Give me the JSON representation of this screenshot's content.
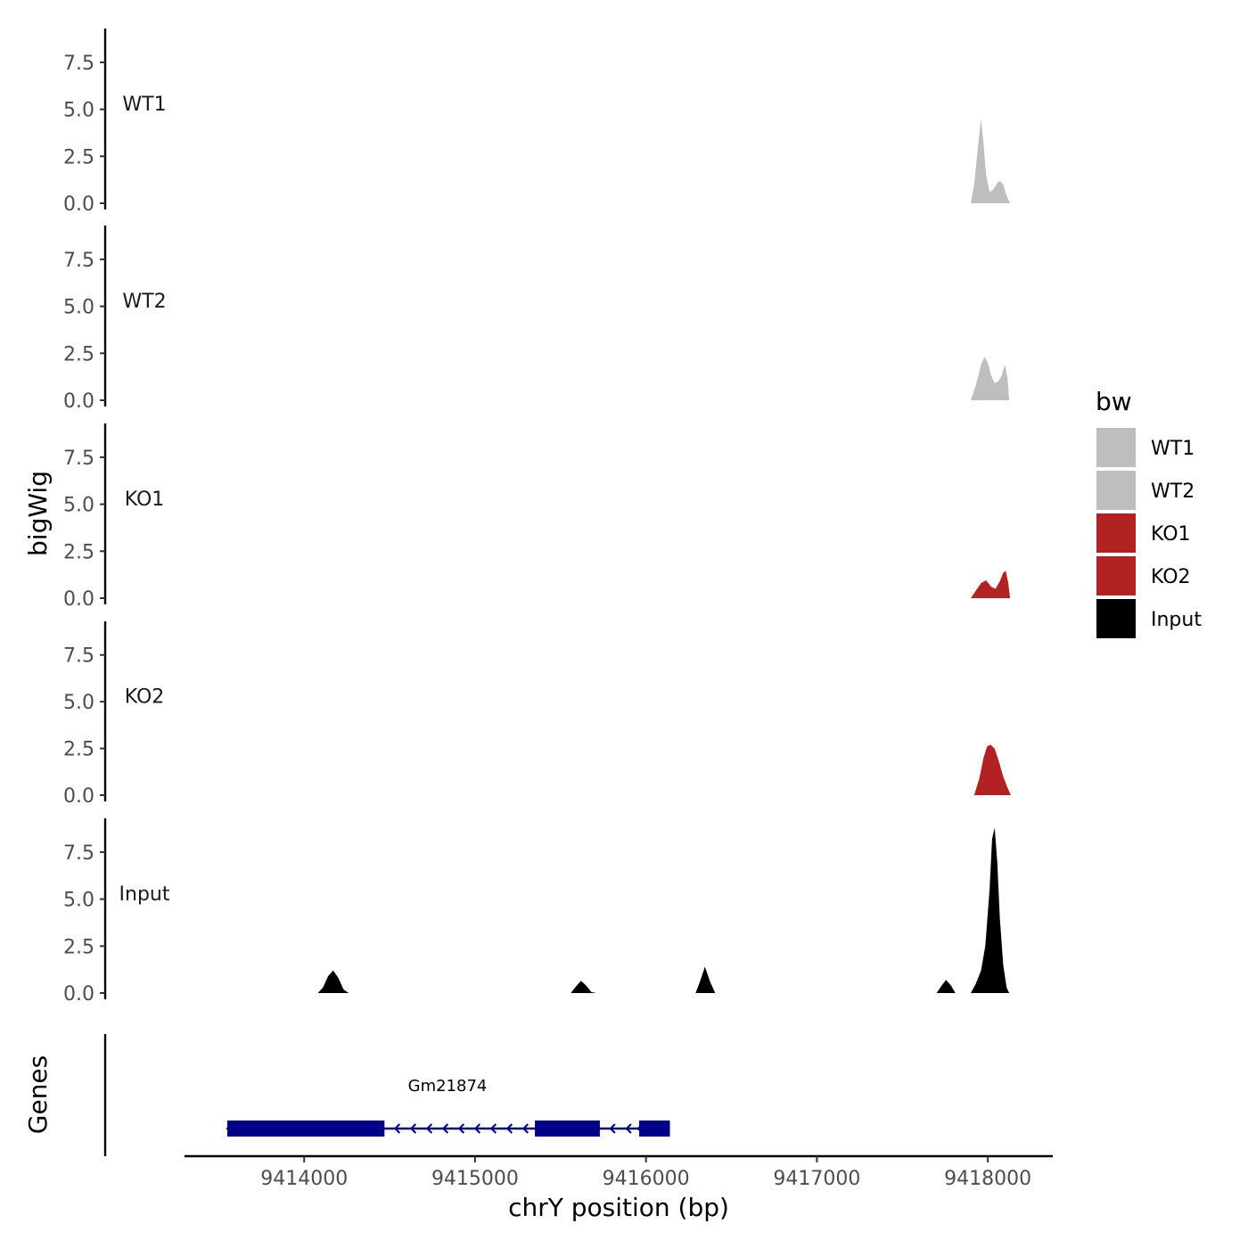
{
  "chart_data": {
    "type": "area",
    "ylabel": "bigWig",
    "xlabel": "chrY position (bp)",
    "xlim": [
      9413300,
      9418380
    ],
    "x_ticks": [
      9414000,
      9415000,
      9416000,
      9417000,
      9418000
    ],
    "x_tick_labels": [
      "9414000",
      "9415000",
      "9416000",
      "9417000",
      "9418000"
    ],
    "ylim": [
      0,
      9.3
    ],
    "y_ticks": [
      0,
      2.5,
      5,
      7.5
    ],
    "y_tick_labels": [
      "0.0",
      "2.5",
      "5.0",
      "7.5"
    ],
    "legend": {
      "title": "bw",
      "placement": "right",
      "entries": [
        {
          "label": "WT1",
          "color": "#bebebe"
        },
        {
          "label": "WT2",
          "color": "#bebebe"
        },
        {
          "label": "KO1",
          "color": "#b22222"
        },
        {
          "label": "KO2",
          "color": "#b22222"
        },
        {
          "label": "Input",
          "color": "#000000"
        }
      ]
    },
    "tracks": [
      {
        "name": "WT1",
        "color": "#bebebe",
        "x": [
          9417900,
          9417920,
          9417940,
          9417960,
          9417975,
          9417990,
          9418010,
          9418030,
          9418050,
          9418070,
          9418090,
          9418110,
          9418130
        ],
        "y": [
          0,
          1.0,
          2.8,
          4.5,
          3.2,
          1.5,
          0.6,
          0.7,
          1.0,
          1.2,
          1.0,
          0.4,
          0
        ]
      },
      {
        "name": "WT2",
        "color": "#bebebe",
        "x": [
          9417900,
          9417930,
          9417960,
          9417980,
          9418000,
          9418020,
          9418040,
          9418060,
          9418080,
          9418100,
          9418115,
          9418125
        ],
        "y": [
          0,
          0.8,
          1.9,
          2.3,
          2.0,
          1.3,
          0.9,
          1.0,
          1.3,
          1.9,
          1.2,
          0
        ]
      },
      {
        "name": "KO1",
        "color": "#b22222",
        "x": [
          9417900,
          9417930,
          9417960,
          9417990,
          9418020,
          9418045,
          9418070,
          9418090,
          9418105,
          9418120,
          9418130
        ],
        "y": [
          0,
          0.4,
          0.8,
          0.95,
          0.6,
          0.5,
          0.9,
          1.35,
          1.45,
          0.8,
          0
        ]
      },
      {
        "name": "KO2",
        "color": "#b22222",
        "x": [
          9417920,
          9417950,
          9417975,
          9417995,
          9418015,
          9418040,
          9418065,
          9418090,
          9418115,
          9418135
        ],
        "y": [
          0,
          0.9,
          2.0,
          2.6,
          2.7,
          2.5,
          1.8,
          1.0,
          0.4,
          0
        ]
      },
      {
        "name": "Input",
        "color": "#000000",
        "x": [
          9414080,
          9414110,
          9414140,
          9414170,
          9414200,
          9414230,
          9414260,
          9415560,
          9415590,
          9415620,
          9415650,
          9415680,
          9415710,
          9416290,
          9416315,
          9416345,
          9416375,
          9416405,
          9417700,
          9417730,
          9417755,
          9417785,
          9417810,
          9417900,
          9417930,
          9417960,
          9417985,
          9418010,
          9418025,
          9418040,
          9418055,
          9418070,
          9418090,
          9418110,
          9418125
        ],
        "y": [
          0,
          0.3,
          0.9,
          1.2,
          0.8,
          0.2,
          0,
          0,
          0.35,
          0.65,
          0.4,
          0.05,
          0,
          0,
          0.6,
          1.4,
          0.6,
          0,
          0,
          0.4,
          0.7,
          0.4,
          0,
          0,
          0.5,
          1.2,
          2.5,
          5.5,
          8.2,
          8.8,
          7.0,
          4.0,
          1.5,
          0.3,
          0
        ]
      }
    ],
    "genes_track": {
      "ylabel": "Genes",
      "genes": [
        {
          "name": "Gm21874",
          "start": 9413550,
          "end": 9416140,
          "strand": "-",
          "color": "#00008b",
          "exons": [
            [
              9413550,
              9414470
            ],
            [
              9415350,
              9415730
            ],
            [
              9415960,
              9416140
            ]
          ]
        }
      ]
    }
  }
}
